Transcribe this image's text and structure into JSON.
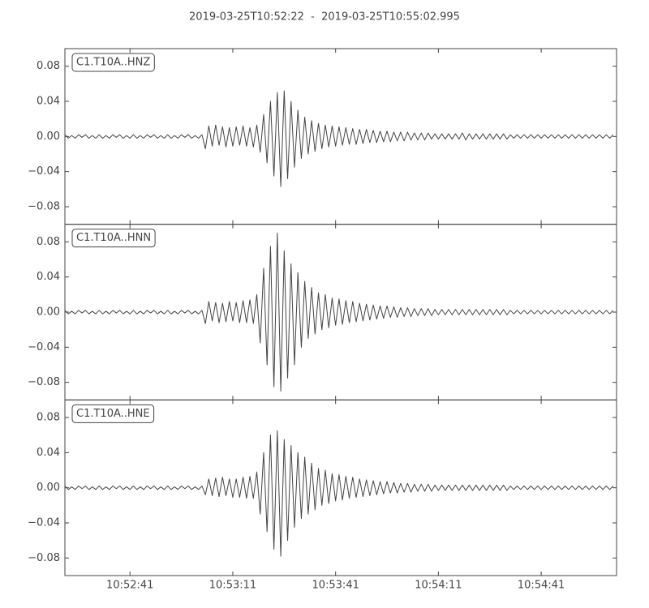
{
  "chart_data": {
    "type": "waveform",
    "title": "2019-03-25T10:52:22  -  2019-03-25T10:55:02.995",
    "xlim": [
      39142,
      39302.995
    ],
    "xticks": [
      {
        "value": 39161,
        "label": "10:52:41"
      },
      {
        "value": 39191,
        "label": "10:53:11"
      },
      {
        "value": 39221,
        "label": "10:53:41"
      },
      {
        "value": 39251,
        "label": "10:54:11"
      },
      {
        "value": 39281,
        "label": "10:54:41"
      }
    ],
    "ylim": [
      -0.1,
      0.1
    ],
    "yticks": [
      {
        "value": -0.08,
        "label": "−0.08"
      },
      {
        "value": -0.04,
        "label": "−0.04"
      },
      {
        "value": 0,
        "label": "0.00"
      },
      0.04,
      0.08
    ],
    "x": [
      39142,
      39143,
      39144,
      39145,
      39146,
      39147,
      39148,
      39149,
      39150,
      39151,
      39152,
      39153,
      39154,
      39155,
      39156,
      39157,
      39158,
      39159,
      39160,
      39161,
      39162,
      39163,
      39164,
      39165,
      39166,
      39167,
      39168,
      39169,
      39170,
      39171,
      39172,
      39173,
      39174,
      39175,
      39176,
      39177,
      39178,
      39179,
      39180,
      39181,
      39182,
      39183,
      39184,
      39185,
      39186,
      39187,
      39188,
      39189,
      39190,
      39191,
      39192,
      39193,
      39194,
      39195,
      39196,
      39197,
      39198,
      39199,
      39200,
      39201,
      39202,
      39203,
      39204,
      39205,
      39206,
      39207,
      39208,
      39209,
      39210,
      39211,
      39212,
      39213,
      39214,
      39215,
      39216,
      39217,
      39218,
      39219,
      39220,
      39221,
      39222,
      39223,
      39224,
      39225,
      39226,
      39227,
      39228,
      39229,
      39230,
      39231,
      39232,
      39233,
      39234,
      39235,
      39236,
      39237,
      39238,
      39239,
      39240,
      39241,
      39242,
      39243,
      39244,
      39245,
      39246,
      39247,
      39248,
      39249,
      39250,
      39251,
      39252,
      39253,
      39254,
      39255,
      39256,
      39257,
      39258,
      39259,
      39260,
      39261,
      39262,
      39263,
      39264,
      39265,
      39266,
      39267,
      39268,
      39269,
      39270,
      39271,
      39272,
      39273,
      39274,
      39275,
      39276,
      39277,
      39278,
      39279,
      39280,
      39281,
      39282,
      39283,
      39284,
      39285,
      39286,
      39287,
      39288,
      39289,
      39290,
      39291,
      39292,
      39293,
      39294,
      39295,
      39296,
      39297,
      39298,
      39299,
      39300,
      39301,
      39302
    ],
    "series": [
      {
        "name": "C1.T10A..HNZ",
        "color": "#444444",
        "values": [
          0.002,
          -0.002,
          0.001,
          -0.002,
          0.002,
          -0.001,
          0.002,
          -0.002,
          0.001,
          -0.002,
          0.002,
          -0.002,
          0.001,
          -0.002,
          0.002,
          -0.001,
          0.002,
          -0.002,
          0.001,
          -0.002,
          0.002,
          -0.002,
          0.001,
          -0.002,
          0.002,
          -0.001,
          0.002,
          -0.002,
          0.001,
          -0.002,
          0.002,
          -0.002,
          0.001,
          -0.002,
          0.002,
          -0.001,
          0.002,
          -0.002,
          0.001,
          -0.002,
          0.002,
          -0.014,
          0.012,
          -0.011,
          0.013,
          -0.01,
          0.011,
          -0.012,
          0.01,
          -0.011,
          0.011,
          -0.01,
          0.012,
          -0.011,
          0.01,
          -0.012,
          0.013,
          -0.018,
          0.025,
          -0.03,
          0.04,
          -0.045,
          0.05,
          -0.057,
          0.052,
          -0.048,
          0.04,
          -0.035,
          0.03,
          -0.025,
          0.022,
          -0.02,
          0.018,
          -0.017,
          0.015,
          -0.014,
          0.013,
          -0.012,
          0.012,
          -0.011,
          0.011,
          -0.01,
          0.01,
          -0.009,
          0.009,
          -0.009,
          0.008,
          -0.008,
          0.008,
          -0.007,
          0.007,
          -0.007,
          0.006,
          -0.006,
          0.006,
          -0.006,
          0.005,
          -0.005,
          0.005,
          -0.005,
          0.005,
          -0.004,
          0.004,
          -0.004,
          0.004,
          -0.004,
          0.004,
          -0.003,
          0.003,
          -0.003,
          0.003,
          -0.003,
          0.003,
          -0.003,
          0.003,
          -0.003,
          0.004,
          -0.004,
          0.003,
          -0.003,
          0.003,
          -0.003,
          0.003,
          -0.003,
          0.003,
          -0.003,
          0.003,
          -0.003,
          0.003,
          -0.003,
          0.002,
          -0.002,
          0.002,
          -0.002,
          0.002,
          -0.002,
          0.002,
          -0.002,
          0.002,
          -0.002,
          0.002,
          -0.002,
          0.002,
          -0.002,
          0.002,
          -0.002,
          0.002,
          -0.002,
          0.002,
          -0.002,
          0.002,
          -0.002,
          0.002,
          -0.002,
          0.002,
          -0.002,
          0.002,
          -0.002,
          0.002,
          -0.002,
          0.002
        ]
      },
      {
        "name": "C1.T10A..HNN",
        "color": "#444444",
        "values": [
          0.002,
          -0.002,
          0.001,
          -0.002,
          0.002,
          -0.001,
          0.002,
          -0.002,
          0.001,
          -0.002,
          0.002,
          -0.002,
          0.001,
          -0.002,
          0.002,
          -0.001,
          0.002,
          -0.002,
          0.001,
          -0.002,
          0.002,
          -0.002,
          0.001,
          -0.002,
          0.002,
          -0.001,
          0.002,
          -0.002,
          0.001,
          -0.002,
          0.002,
          -0.002,
          0.001,
          -0.002,
          0.002,
          -0.001,
          0.002,
          -0.002,
          0.001,
          -0.002,
          0.002,
          -0.013,
          0.012,
          -0.01,
          0.011,
          -0.012,
          0.01,
          -0.011,
          0.012,
          -0.01,
          0.011,
          -0.012,
          0.013,
          -0.012,
          0.014,
          -0.013,
          0.02,
          -0.035,
          0.05,
          -0.06,
          0.075,
          -0.085,
          0.09,
          -0.09,
          0.07,
          -0.075,
          0.055,
          -0.06,
          0.045,
          -0.04,
          0.035,
          -0.03,
          0.028,
          -0.025,
          0.022,
          -0.02,
          0.02,
          -0.018,
          0.016,
          -0.015,
          0.015,
          -0.014,
          0.013,
          -0.012,
          0.012,
          -0.011,
          0.01,
          -0.01,
          0.009,
          -0.009,
          0.008,
          -0.008,
          0.007,
          -0.007,
          0.007,
          -0.006,
          0.006,
          -0.006,
          0.005,
          -0.005,
          0.005,
          -0.005,
          0.004,
          -0.004,
          0.004,
          -0.004,
          0.004,
          -0.004,
          0.003,
          -0.003,
          0.003,
          -0.003,
          0.003,
          -0.003,
          0.003,
          -0.003,
          0.003,
          -0.003,
          0.003,
          -0.003,
          0.003,
          -0.003,
          0.003,
          -0.003,
          0.003,
          -0.003,
          0.003,
          -0.003,
          0.003,
          -0.003,
          0.002,
          -0.002,
          0.002,
          -0.002,
          0.002,
          -0.002,
          0.002,
          -0.002,
          0.002,
          -0.002,
          0.002,
          -0.002,
          0.002,
          -0.002,
          0.002,
          -0.002,
          0.002,
          -0.002,
          0.002,
          -0.002,
          0.002,
          -0.002,
          0.002,
          -0.002,
          0.002,
          -0.002,
          0.002,
          -0.002,
          0.002,
          -0.002,
          0.002
        ]
      },
      {
        "name": "C1.T10A..HNE",
        "color": "#444444",
        "values": [
          0.002,
          -0.002,
          0.001,
          -0.002,
          0.002,
          -0.001,
          0.002,
          -0.002,
          0.001,
          -0.002,
          0.002,
          -0.002,
          0.001,
          -0.002,
          0.002,
          -0.001,
          0.002,
          -0.002,
          0.001,
          -0.002,
          0.002,
          -0.002,
          0.001,
          -0.002,
          0.002,
          -0.001,
          0.002,
          -0.002,
          0.001,
          -0.002,
          0.002,
          -0.002,
          0.001,
          -0.002,
          0.002,
          -0.001,
          0.002,
          -0.002,
          0.001,
          -0.002,
          0.002,
          -0.008,
          0.01,
          -0.009,
          0.011,
          -0.01,
          0.012,
          -0.009,
          0.01,
          -0.011,
          0.01,
          -0.011,
          0.012,
          -0.012,
          0.013,
          -0.012,
          0.018,
          -0.03,
          0.04,
          -0.05,
          0.06,
          -0.07,
          0.065,
          -0.078,
          0.055,
          -0.06,
          0.048,
          -0.045,
          0.04,
          -0.035,
          0.035,
          -0.03,
          0.028,
          -0.025,
          0.022,
          -0.02,
          0.02,
          -0.018,
          0.016,
          -0.015,
          0.015,
          -0.014,
          0.013,
          -0.012,
          0.012,
          -0.011,
          0.01,
          -0.01,
          0.009,
          -0.009,
          0.008,
          -0.008,
          0.007,
          -0.007,
          0.007,
          -0.006,
          0.006,
          -0.006,
          0.005,
          -0.005,
          0.005,
          -0.005,
          0.004,
          -0.004,
          0.004,
          -0.004,
          0.004,
          -0.004,
          0.003,
          -0.003,
          0.003,
          -0.003,
          0.003,
          -0.003,
          0.003,
          -0.003,
          0.003,
          -0.003,
          0.003,
          -0.003,
          0.003,
          -0.003,
          0.003,
          -0.003,
          0.003,
          -0.003,
          0.003,
          -0.003,
          0.003,
          -0.003,
          0.002,
          -0.002,
          0.002,
          -0.002,
          0.002,
          -0.002,
          0.002,
          -0.002,
          0.002,
          -0.002,
          0.002,
          -0.002,
          0.002,
          -0.002,
          0.002,
          -0.002,
          0.002,
          -0.002,
          0.002,
          -0.002,
          0.002,
          -0.002,
          0.002,
          -0.002,
          0.002,
          -0.002,
          0.002,
          -0.002,
          0.002,
          -0.002,
          0.002
        ]
      }
    ]
  }
}
